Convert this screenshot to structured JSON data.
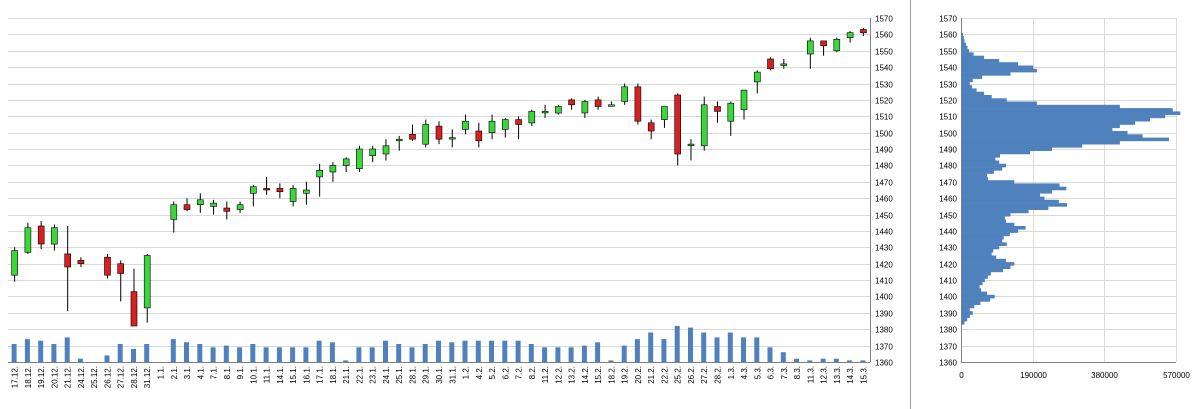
{
  "colors": {
    "up": "#3ad63a",
    "down": "#d82020",
    "wick": "#000000",
    "volume": "#4f81bd",
    "profile": "#4f81bd",
    "grid": "#d9d9d9"
  },
  "chart_data": [
    {
      "type": "candlestick",
      "title": "",
      "ylim": [
        1360,
        1570
      ],
      "y_ticks": [
        1360,
        1370,
        1380,
        1390,
        1400,
        1410,
        1420,
        1430,
        1440,
        1450,
        1460,
        1470,
        1480,
        1490,
        1500,
        1510,
        1520,
        1530,
        1540,
        1550,
        1560,
        1570
      ],
      "y_axis_side": "right",
      "grid": true,
      "volume_overlay": true,
      "volume_note": "volume bars share the price panel baseline; values shown in axis units above 1360",
      "categories": [
        "17.12.",
        "18.12.",
        "19.12.",
        "20.12.",
        "21.12.",
        "24.12.",
        "25.12.",
        "26.12.",
        "27.12.",
        "28.12.",
        "31.12.",
        "1.1.",
        "2.1.",
        "3.1.",
        "4.1.",
        "7.1.",
        "8.1.",
        "9.1.",
        "10.1.",
        "11.1.",
        "14.1.",
        "15.1.",
        "16.1.",
        "17.1.",
        "18.1.",
        "21.1.",
        "22.1.",
        "23.1.",
        "24.1.",
        "25.1.",
        "28.1.",
        "29.1.",
        "30.1.",
        "31.1.",
        "1.2.",
        "4.2.",
        "5.2.",
        "6.2.",
        "7.2.",
        "8.2.",
        "11.2.",
        "12.2.",
        "13.2.",
        "14.2.",
        "15.2.",
        "18.2.",
        "19.2.",
        "20.2.",
        "21.2.",
        "22.2.",
        "25.2.",
        "26.2.",
        "27.2.",
        "28.2.",
        "1.3.",
        "4.3.",
        "5.3.",
        "6.3.",
        "7.3.",
        "8.3.",
        "11.3.",
        "12.3.",
        "13.3.",
        "14.3.",
        "15.3."
      ],
      "ohlc": [
        [
          1413,
          1430,
          1409,
          1428
        ],
        [
          1427,
          1445,
          1426,
          1442
        ],
        [
          1443,
          1446,
          1429,
          1432
        ],
        [
          1432,
          1444,
          1428,
          1442
        ],
        [
          1426,
          1443,
          1391,
          1418
        ],
        [
          1422,
          1424,
          1418,
          1420
        ],
        null,
        [
          1424,
          1426,
          1411,
          1413
        ],
        [
          1420,
          1422,
          1397,
          1414
        ],
        [
          1403,
          1417,
          1382,
          1382
        ],
        [
          1393,
          1426,
          1384,
          1425
        ],
        null,
        [
          1447,
          1458,
          1439,
          1456
        ],
        [
          1456,
          1460,
          1452,
          1453
        ],
        [
          1456,
          1463,
          1451,
          1459
        ],
        [
          1455,
          1459,
          1450,
          1457
        ],
        [
          1454,
          1458,
          1447,
          1452
        ],
        [
          1453,
          1458,
          1451,
          1456
        ],
        [
          1463,
          1468,
          1455,
          1467
        ],
        [
          1466,
          1473,
          1462,
          1465
        ],
        [
          1466,
          1469,
          1460,
          1464
        ],
        [
          1458,
          1468,
          1455,
          1466
        ],
        [
          1463,
          1470,
          1456,
          1465
        ],
        [
          1473,
          1481,
          1461,
          1477
        ],
        [
          1476,
          1482,
          1470,
          1480
        ],
        [
          1480,
          1485,
          1476,
          1484
        ],
        [
          1478,
          1492,
          1476,
          1490
        ],
        [
          1486,
          1492,
          1482,
          1490
        ],
        [
          1487,
          1496,
          1483,
          1492
        ],
        [
          1495,
          1498,
          1489,
          1496
        ],
        [
          1499,
          1505,
          1495,
          1496
        ],
        [
          1493,
          1508,
          1491,
          1505
        ],
        [
          1504,
          1507,
          1493,
          1496
        ],
        [
          1497,
          1502,
          1491,
          1497
        ],
        [
          1502,
          1511,
          1499,
          1507
        ],
        [
          1501,
          1506,
          1491,
          1495
        ],
        [
          1500,
          1511,
          1496,
          1507
        ],
        [
          1502,
          1509,
          1497,
          1508
        ],
        [
          1508,
          1510,
          1496,
          1505
        ],
        [
          1506,
          1514,
          1504,
          1513
        ],
        [
          1513,
          1517,
          1509,
          1513
        ],
        [
          1512,
          1517,
          1511,
          1516
        ],
        [
          1520,
          1521,
          1514,
          1517
        ],
        [
          1512,
          1520,
          1509,
          1519
        ],
        [
          1520,
          1522,
          1514,
          1516
        ],
        [
          1517,
          1519,
          1516,
          1517
        ],
        [
          1519,
          1530,
          1517,
          1528
        ],
        [
          1528,
          1530,
          1505,
          1507
        ],
        [
          1506,
          1508,
          1496,
          1501
        ],
        [
          1508,
          1516,
          1503,
          1516
        ],
        [
          1523,
          1524,
          1480,
          1487
        ],
        [
          1493,
          1496,
          1483,
          1493
        ],
        [
          1492,
          1522,
          1489,
          1517
        ],
        [
          1516,
          1519,
          1506,
          1513
        ],
        [
          1507,
          1519,
          1498,
          1518
        ],
        [
          1514,
          1526,
          1508,
          1526
        ],
        [
          1531,
          1538,
          1524,
          1537
        ],
        [
          1545,
          1546,
          1538,
          1539
        ],
        [
          1541,
          1545,
          1539,
          1542
        ],
        null,
        [
          1548,
          1558,
          1539,
          1556
        ],
        [
          1556,
          1556,
          1547,
          1553
        ],
        [
          1550,
          1558,
          1549,
          1557
        ],
        [
          1558,
          1562,
          1555,
          1561
        ],
        [
          1563,
          1564,
          1559,
          1561
        ]
      ],
      "volume": [
        1371,
        1374,
        1373,
        1371,
        1375,
        1362,
        null,
        1364,
        1371,
        1368,
        1371,
        null,
        1374,
        1372,
        1371,
        1369,
        1370,
        1369,
        1371,
        1369,
        1369,
        1369,
        1369,
        1373,
        1372,
        1361,
        1369,
        1369,
        1373,
        1371,
        1369,
        1371,
        1373,
        1372,
        1373,
        1373,
        1373,
        1373,
        1373,
        1371,
        1369,
        1369,
        1369,
        1370,
        1372,
        1361,
        1370,
        1374,
        1378,
        1374,
        1382,
        1381,
        1378,
        1375,
        1378,
        1375,
        1375,
        1369,
        1366,
        1362,
        1361,
        1362,
        1362,
        1361,
        1361
      ]
    },
    {
      "type": "horizontal-histogram",
      "title": "",
      "ylim": [
        1360,
        1570
      ],
      "y_ticks": [
        1360,
        1370,
        1380,
        1390,
        1400,
        1410,
        1420,
        1430,
        1440,
        1450,
        1460,
        1470,
        1480,
        1490,
        1500,
        1510,
        1520,
        1530,
        1540,
        1550,
        1560,
        1570
      ],
      "x_ticks": [
        "0",
        "190000",
        "380000",
        "570000"
      ],
      "xlim": [
        0,
        570000
      ],
      "grid": true,
      "profile": [
        [
          1384,
          8000
        ],
        [
          1386,
          15000
        ],
        [
          1388,
          22000
        ],
        [
          1390,
          30000
        ],
        [
          1392,
          22000
        ],
        [
          1394,
          34000
        ],
        [
          1396,
          50000
        ],
        [
          1398,
          76000
        ],
        [
          1400,
          88000
        ],
        [
          1402,
          68000
        ],
        [
          1404,
          52000
        ],
        [
          1406,
          48000
        ],
        [
          1408,
          56000
        ],
        [
          1410,
          62000
        ],
        [
          1412,
          70000
        ],
        [
          1414,
          78000
        ],
        [
          1416,
          110000
        ],
        [
          1418,
          130000
        ],
        [
          1420,
          140000
        ],
        [
          1422,
          118000
        ],
        [
          1424,
          92000
        ],
        [
          1426,
          80000
        ],
        [
          1428,
          84000
        ],
        [
          1430,
          100000
        ],
        [
          1432,
          120000
        ],
        [
          1434,
          108000
        ],
        [
          1436,
          112000
        ],
        [
          1438,
          128000
        ],
        [
          1440,
          150000
        ],
        [
          1442,
          170000
        ],
        [
          1444,
          140000
        ],
        [
          1446,
          118000
        ],
        [
          1448,
          115000
        ],
        [
          1450,
          130000
        ],
        [
          1452,
          178000
        ],
        [
          1454,
          230000
        ],
        [
          1456,
          280000
        ],
        [
          1458,
          258000
        ],
        [
          1460,
          220000
        ],
        [
          1462,
          208000
        ],
        [
          1464,
          240000
        ],
        [
          1466,
          278000
        ],
        [
          1468,
          260000
        ],
        [
          1470,
          140000
        ],
        [
          1472,
          70000
        ],
        [
          1474,
          68000
        ],
        [
          1476,
          86000
        ],
        [
          1478,
          108000
        ],
        [
          1480,
          118000
        ],
        [
          1482,
          100000
        ],
        [
          1484,
          90000
        ],
        [
          1486,
          102000
        ],
        [
          1488,
          182000
        ],
        [
          1490,
          240000
        ],
        [
          1492,
          320000
        ],
        [
          1494,
          420000
        ],
        [
          1496,
          550000
        ],
        [
          1498,
          480000
        ],
        [
          1500,
          440000
        ],
        [
          1502,
          400000
        ],
        [
          1504,
          420000
        ],
        [
          1506,
          460000
        ],
        [
          1508,
          500000
        ],
        [
          1510,
          540000
        ],
        [
          1512,
          580000
        ],
        [
          1514,
          560000
        ],
        [
          1516,
          420000
        ],
        [
          1518,
          200000
        ],
        [
          1520,
          120000
        ],
        [
          1522,
          80000
        ],
        [
          1524,
          60000
        ],
        [
          1526,
          40000
        ],
        [
          1528,
          28000
        ],
        [
          1530,
          22000
        ],
        [
          1532,
          30000
        ],
        [
          1534,
          55000
        ],
        [
          1536,
          130000
        ],
        [
          1538,
          200000
        ],
        [
          1540,
          190000
        ],
        [
          1542,
          150000
        ],
        [
          1544,
          100000
        ],
        [
          1546,
          60000
        ],
        [
          1548,
          32000
        ],
        [
          1550,
          20000
        ],
        [
          1552,
          16000
        ],
        [
          1554,
          12000
        ],
        [
          1556,
          8000
        ],
        [
          1558,
          6000
        ],
        [
          1560,
          4000
        ]
      ]
    }
  ]
}
